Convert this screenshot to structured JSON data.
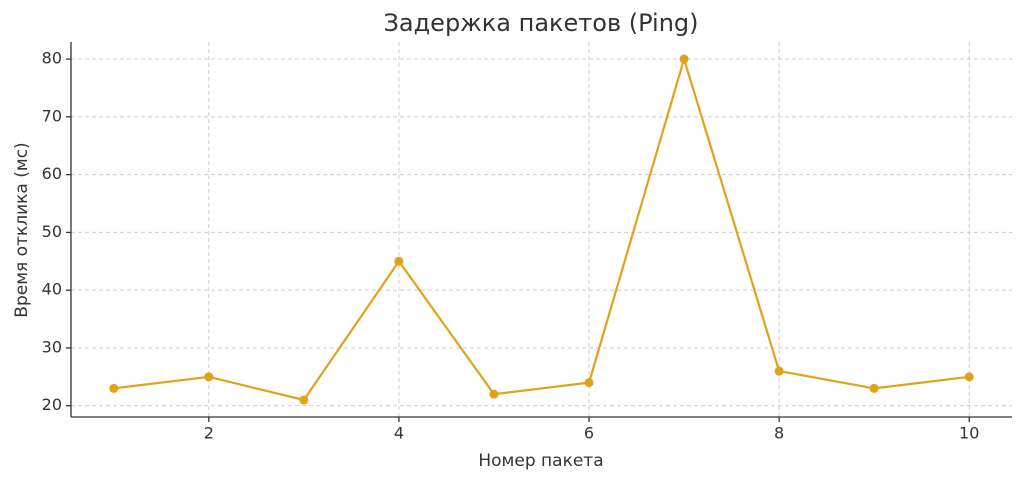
{
  "chart_data": {
    "type": "line",
    "title": "Задержка пакетов (Ping)",
    "xlabel": "Номер пакета",
    "ylabel": "Время отклика (мс)",
    "x": [
      1,
      2,
      3,
      4,
      5,
      6,
      7,
      8,
      9,
      10
    ],
    "series": [
      {
        "name": "Ping",
        "color": "#e0a21a",
        "values": [
          23,
          25,
          21,
          45,
          22,
          24,
          80,
          26,
          23,
          25
        ]
      }
    ],
    "xlim": [
      0.55,
      10.45
    ],
    "ylim": [
      18.05,
      82.95
    ],
    "xticks": [
      2,
      4,
      6,
      8,
      10
    ],
    "yticks": [
      20,
      30,
      40,
      50,
      60,
      70,
      80
    ],
    "grid": true
  }
}
